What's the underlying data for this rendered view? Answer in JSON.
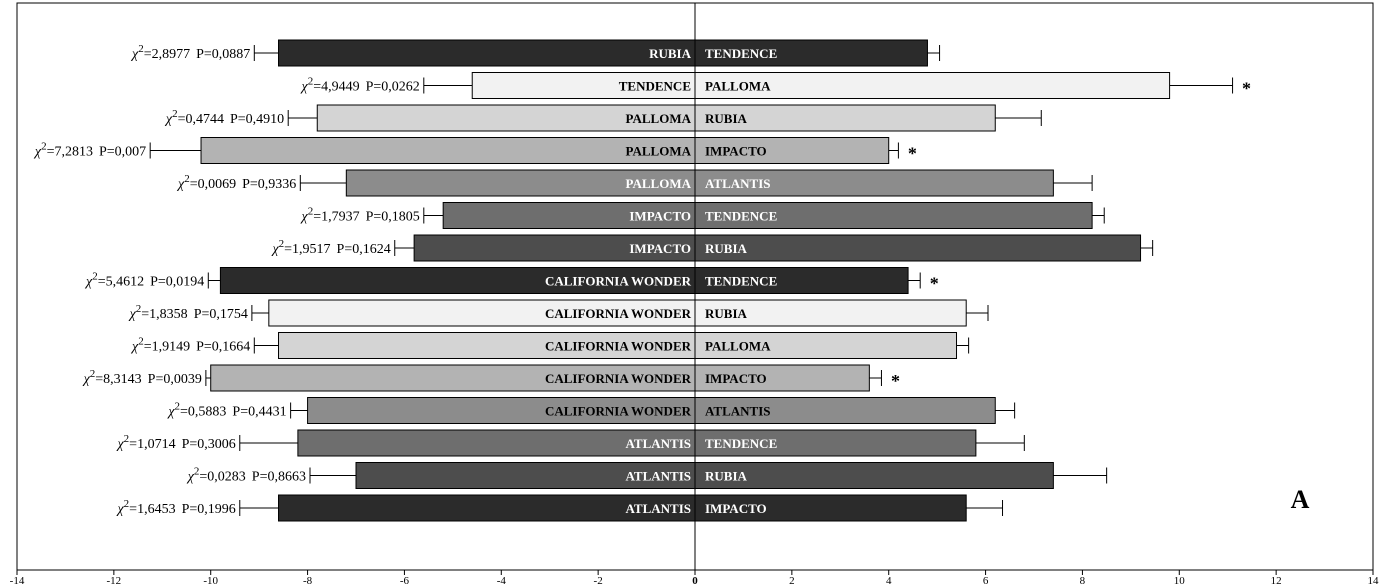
{
  "chart_data": {
    "type": "bar",
    "orientation": "horizontal-diverging",
    "xlim": [
      -14,
      14
    ],
    "xticks": [
      -14,
      -12,
      -10,
      -8,
      -6,
      -4,
      -2,
      0,
      2,
      4,
      6,
      8,
      10,
      12,
      14
    ],
    "grid": false,
    "panel_label": "A",
    "rows": [
      {
        "left": "RUBIA",
        "right": "TENDENCE",
        "left_value": -8.6,
        "right_value": 4.8,
        "left_err": 0.5,
        "right_err": 0.25,
        "chi": "=2,8977",
        "p": "P=0,0887",
        "sig": "",
        "fill": "#2b2b2b",
        "text": "#ffffff"
      },
      {
        "left": "TENDENCE",
        "right": "PALLOMA",
        "left_value": -4.6,
        "right_value": 9.8,
        "left_err": 1.0,
        "right_err": 1.3,
        "chi": "=4,9449",
        "p": "P=0,0262",
        "sig": "*",
        "fill": "#f2f2f2",
        "text": "#000000"
      },
      {
        "left": "PALLOMA",
        "right": "RUBIA",
        "left_value": -7.8,
        "right_value": 6.2,
        "left_err": 0.6,
        "right_err": 0.95,
        "chi": "=0,4744",
        "p": "P=0,4910",
        "sig": "",
        "fill": "#d4d4d4",
        "text": "#000000"
      },
      {
        "left": "PALLOMA",
        "right": "IMPACTO",
        "left_value": -10.2,
        "right_value": 4.0,
        "left_err": 1.05,
        "right_err": 0.2,
        "chi": "=7,2813",
        "p": "P=0,007",
        "sig": "*",
        "fill": "#b3b3b3",
        "text": "#000000"
      },
      {
        "left": "PALLOMA",
        "right": "ATLANTIS",
        "left_value": -7.2,
        "right_value": 7.4,
        "left_err": 0.95,
        "right_err": 0.8,
        "chi": "=0,0069",
        "p": "P=0,9336",
        "sig": "",
        "fill": "#8c8c8c",
        "text": "#ffffff"
      },
      {
        "left": "IMPACTO",
        "right": "TENDENCE",
        "left_value": -5.2,
        "right_value": 8.2,
        "left_err": 0.4,
        "right_err": 0.25,
        "chi": "=1,7937",
        "p": "P=0,1805",
        "sig": "",
        "fill": "#6e6e6e",
        "text": "#ffffff"
      },
      {
        "left": "IMPACTO",
        "right": "RUBIA",
        "left_value": -5.8,
        "right_value": 9.2,
        "left_err": 0.4,
        "right_err": 0.25,
        "chi": "=1,9517",
        "p": "P=0,1624",
        "sig": "",
        "fill": "#4d4d4d",
        "text": "#ffffff"
      },
      {
        "left": "CALIFORNIA WONDER",
        "right": "TENDENCE",
        "left_value": -9.8,
        "right_value": 4.4,
        "left_err": 0.25,
        "right_err": 0.25,
        "chi": "=5,4612",
        "p": "P=0,0194",
        "sig": "*",
        "fill": "#2b2b2b",
        "text": "#ffffff"
      },
      {
        "left": "CALIFORNIA WONDER",
        "right": "RUBIA",
        "left_value": -8.8,
        "right_value": 5.6,
        "left_err": 0.35,
        "right_err": 0.45,
        "chi": "=1,8358",
        "p": "P=0,1754",
        "sig": "",
        "fill": "#f2f2f2",
        "text": "#000000"
      },
      {
        "left": "CALIFORNIA WONDER",
        "right": "PALLOMA",
        "left_value": -8.6,
        "right_value": 5.4,
        "left_err": 0.5,
        "right_err": 0.25,
        "chi": "=1,9149",
        "p": "P=0,1664",
        "sig": "",
        "fill": "#d4d4d4",
        "text": "#000000"
      },
      {
        "left": "CALIFORNIA WONDER",
        "right": "IMPACTO",
        "left_value": -10.0,
        "right_value": 3.6,
        "left_err": 0.1,
        "right_err": 0.25,
        "chi": "=8,3143",
        "p": "P=0,0039",
        "sig": "*",
        "fill": "#b3b3b3",
        "text": "#000000"
      },
      {
        "left": "CALIFORNIA WONDER",
        "right": "ATLANTIS",
        "left_value": -8.0,
        "right_value": 6.2,
        "left_err": 0.35,
        "right_err": 0.4,
        "chi": "=0,5883",
        "p": "P=0,4431",
        "sig": "",
        "fill": "#8c8c8c",
        "text": "#000000"
      },
      {
        "left": "ATLANTIS",
        "right": "TENDENCE",
        "left_value": -8.2,
        "right_value": 5.8,
        "left_err": 1.2,
        "right_err": 1.0,
        "chi": "=1,0714",
        "p": "P=0,3006",
        "sig": "",
        "fill": "#6e6e6e",
        "text": "#ffffff"
      },
      {
        "left": "ATLANTIS",
        "right": "RUBIA",
        "left_value": -7.0,
        "right_value": 7.4,
        "left_err": 0.95,
        "right_err": 1.1,
        "chi": "=0,0283",
        "p": "P=0,8663",
        "sig": "",
        "fill": "#4d4d4d",
        "text": "#ffffff"
      },
      {
        "left": "ATLANTIS",
        "right": "IMPACTO",
        "left_value": -8.6,
        "right_value": 5.6,
        "left_err": 0.8,
        "right_err": 0.75,
        "chi": "=1,6453",
        "p": "P=0,1996",
        "sig": "",
        "fill": "#2b2b2b",
        "text": "#ffffff"
      }
    ]
  }
}
